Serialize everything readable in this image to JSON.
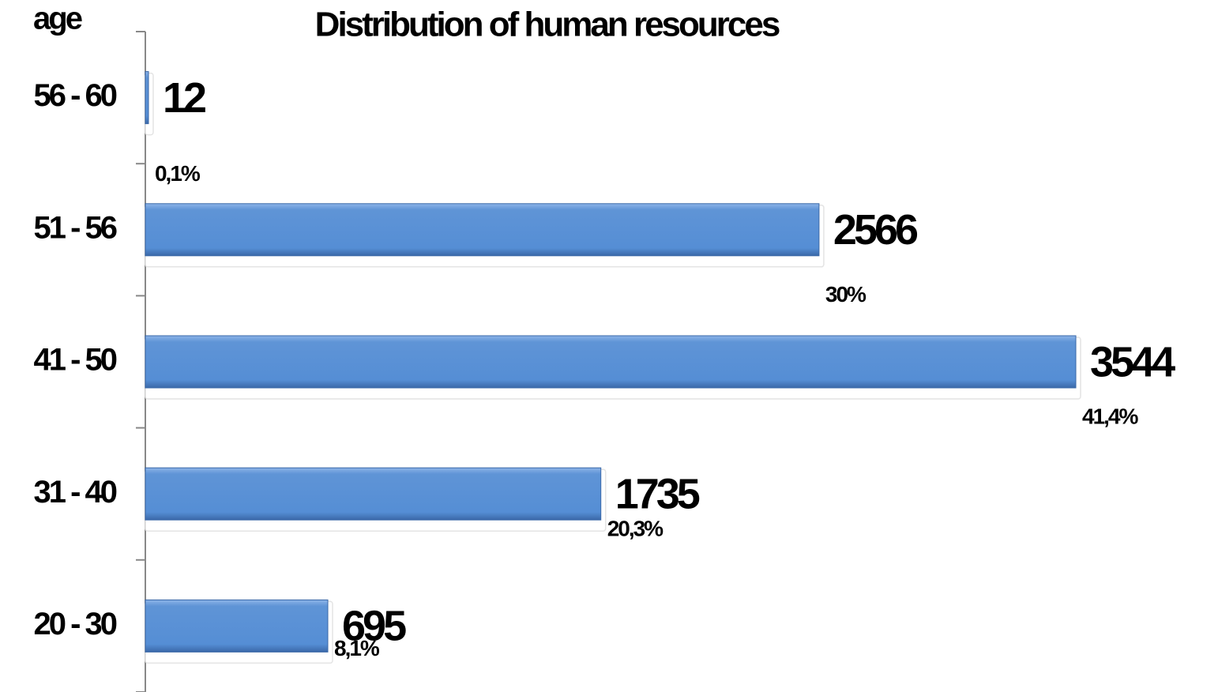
{
  "chart_data": {
    "type": "bar",
    "orientation": "horizontal",
    "title": "Distribution of human resources",
    "y_label": "age",
    "categories": [
      "56 - 60",
      "51 - 56",
      "41 - 50",
      "31 - 40",
      "20 - 30"
    ],
    "values": [
      12,
      2566,
      3544,
      1735,
      695
    ],
    "percent_labels": [
      "0,1%",
      "30%",
      "41,4%",
      "20,3%",
      "8,1%"
    ],
    "color": "#558ed5"
  }
}
